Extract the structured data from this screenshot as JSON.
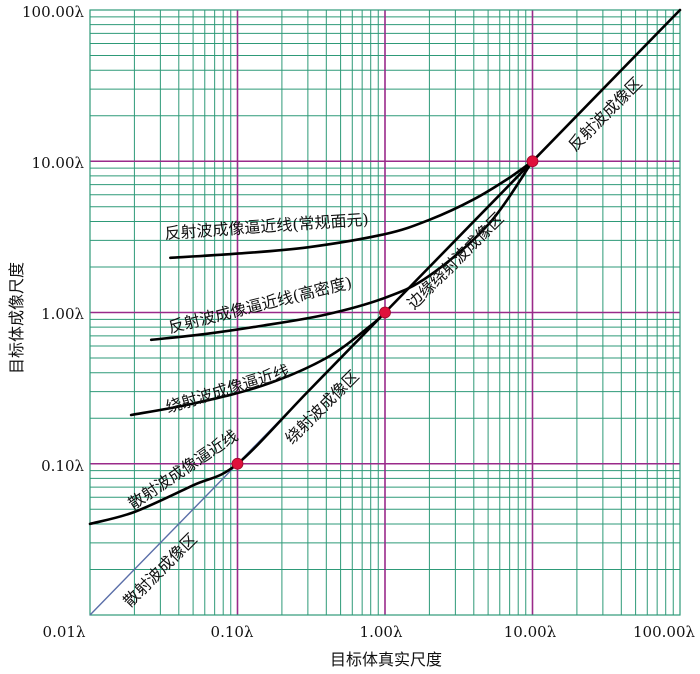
{
  "chart_data": {
    "type": "line",
    "scale": "log-log",
    "xlabel": "目标体真实尺度",
    "ylabel": "目标体成像尺度",
    "xlim": [
      0.01,
      100
    ],
    "ylim": [
      0.01,
      100
    ],
    "x_ticks": [
      0.01,
      0.1,
      1,
      10,
      100
    ],
    "x_tick_labels": [
      "0.01λ",
      "0.10λ",
      "1.00λ",
      "10.00λ",
      "100.00λ"
    ],
    "y_ticks": [
      0.1,
      1,
      10,
      100
    ],
    "y_tick_labels": [
      "0.10λ",
      "1.00λ",
      "10.00λ",
      "100.00λ"
    ],
    "grid": "log minor + decade major",
    "colors": {
      "minor_grid": "#2e9a78",
      "major_grid": "#9a2a8a",
      "diagonal": "#5a6ea8",
      "curve": "#000000",
      "marker": "#e0103c"
    },
    "series": [
      {
        "name": "反射波成像逼近线(常规面元)",
        "x": [
          0.035,
          0.1,
          0.3,
          1.0,
          2.0,
          4.0,
          7.0,
          10.0
        ],
        "y": [
          2.3,
          2.45,
          2.7,
          3.3,
          4.1,
          5.6,
          7.8,
          10.0
        ]
      },
      {
        "name": "反射波成像逼近线(高密度)",
        "x": [
          0.026,
          0.06,
          0.15,
          0.4,
          1.0,
          2.0,
          5.0,
          10.0
        ],
        "y": [
          0.66,
          0.72,
          0.82,
          0.97,
          1.25,
          1.75,
          3.8,
          10.0
        ]
      },
      {
        "name": "绕射波成像逼近线",
        "x": [
          0.019,
          0.05,
          0.15,
          0.4,
          0.8,
          1.0
        ],
        "y": [
          0.21,
          0.25,
          0.33,
          0.5,
          0.82,
          1.0
        ]
      },
      {
        "name": "散射波成像逼近线",
        "x": [
          0.01,
          0.02,
          0.05,
          0.1,
          0.3,
          1.0,
          3.0,
          10.0,
          100.0
        ],
        "y": [
          0.04,
          0.048,
          0.072,
          0.1,
          0.3,
          1.0,
          3.0,
          10.0,
          100.0
        ]
      }
    ],
    "diagonal_line": {
      "x": [
        0.01,
        100
      ],
      "y": [
        0.01,
        100
      ]
    },
    "markers": [
      {
        "x": 0.1,
        "y": 0.1
      },
      {
        "x": 1.0,
        "y": 1.0
      },
      {
        "x": 10.0,
        "y": 10.0
      }
    ],
    "region_labels": [
      "散射波成像区",
      "绕射波成像区",
      "边缘绕射波成像区",
      "反射波成像区"
    ]
  }
}
